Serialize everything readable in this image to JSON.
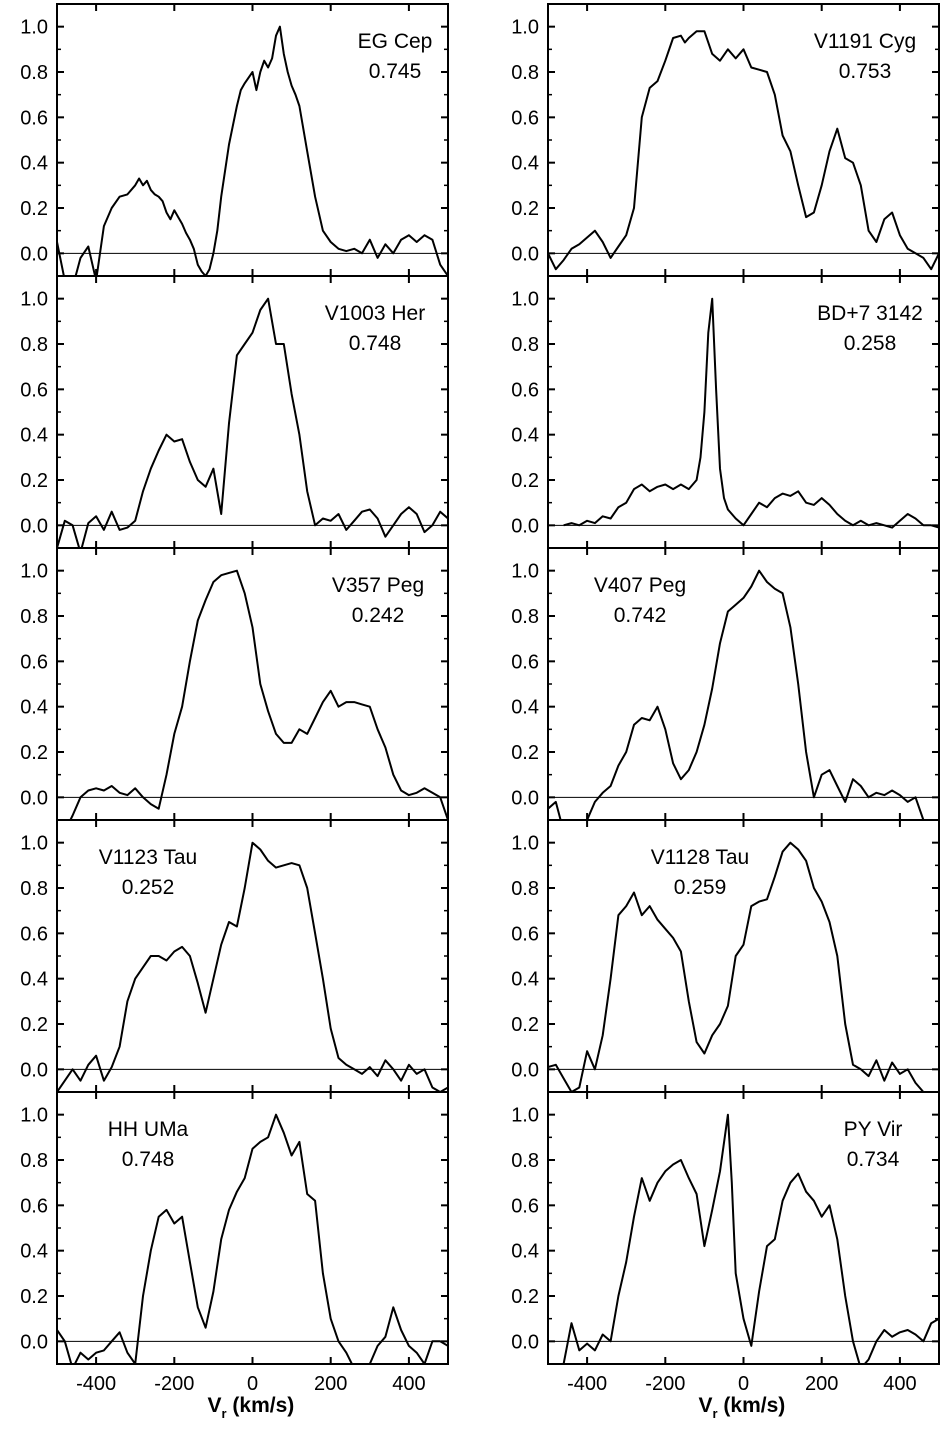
{
  "chart_data": {
    "type": "line",
    "layout": "grid",
    "columns": 2,
    "rows": 5,
    "xlim": [
      -500,
      500
    ],
    "ylim": [
      -0.1,
      1.1
    ],
    "x_ticks": [
      -400,
      -200,
      0,
      200,
      400
    ],
    "x_tick_labels": [
      "-400",
      "-200",
      "0",
      "200",
      "400"
    ],
    "y_ticks": [
      0.0,
      0.2,
      0.4,
      0.6,
      0.8,
      1.0
    ],
    "y_tick_labels": [
      "0.0",
      "0.2",
      "0.4",
      "0.6",
      "0.8",
      "1.0"
    ],
    "xlabel": {
      "main": "V",
      "sub": "r",
      "unit": " (km/s)"
    },
    "ylabel": "",
    "zero_line": true,
    "panels": [
      {
        "star": "EG Cep",
        "phase": "0.745",
        "x": [
          -500,
          -480,
          -460,
          -440,
          -420,
          -400,
          -380,
          -360,
          -340,
          -320,
          -300,
          -290,
          -280,
          -270,
          -260,
          -250,
          -240,
          -230,
          -220,
          -210,
          -200,
          -190,
          -180,
          -170,
          -160,
          -150,
          -140,
          -130,
          -120,
          -110,
          -100,
          -90,
          -80,
          -60,
          -40,
          -30,
          -20,
          0,
          10,
          20,
          30,
          40,
          50,
          60,
          70,
          80,
          90,
          100,
          110,
          120,
          140,
          160,
          180,
          200,
          220,
          240,
          260,
          280,
          300,
          320,
          340,
          360,
          380,
          400,
          420,
          440,
          460,
          480,
          500
        ],
        "y": [
          0.05,
          -0.12,
          -0.15,
          -0.02,
          0.03,
          -0.12,
          0.12,
          0.2,
          0.25,
          0.26,
          0.3,
          0.33,
          0.3,
          0.32,
          0.28,
          0.26,
          0.25,
          0.23,
          0.18,
          0.15,
          0.19,
          0.16,
          0.13,
          0.09,
          0.06,
          0.02,
          -0.05,
          -0.08,
          -0.1,
          -0.07,
          0.0,
          0.1,
          0.25,
          0.48,
          0.65,
          0.72,
          0.75,
          0.8,
          0.72,
          0.8,
          0.85,
          0.82,
          0.86,
          0.96,
          1.0,
          0.88,
          0.8,
          0.74,
          0.7,
          0.65,
          0.45,
          0.25,
          0.1,
          0.05,
          0.02,
          0.01,
          0.02,
          0.0,
          0.06,
          -0.02,
          0.04,
          0.0,
          0.06,
          0.08,
          0.05,
          0.08,
          0.06,
          -0.05,
          -0.1
        ]
      },
      {
        "star": "V1191 Cyg",
        "phase": "0.753",
        "x": [
          -500,
          -480,
          -460,
          -440,
          -420,
          -400,
          -380,
          -360,
          -340,
          -320,
          -300,
          -280,
          -260,
          -240,
          -220,
          -200,
          -180,
          -160,
          -150,
          -140,
          -120,
          -100,
          -80,
          -60,
          -40,
          -20,
          0,
          20,
          40,
          60,
          80,
          100,
          120,
          140,
          160,
          180,
          200,
          220,
          240,
          260,
          280,
          300,
          320,
          340,
          360,
          380,
          400,
          420,
          440,
          460,
          480,
          500
        ],
        "y": [
          0.0,
          -0.07,
          -0.03,
          0.02,
          0.04,
          0.07,
          0.1,
          0.05,
          -0.02,
          0.03,
          0.08,
          0.2,
          0.6,
          0.73,
          0.76,
          0.85,
          0.95,
          0.96,
          0.93,
          0.95,
          0.98,
          0.98,
          0.88,
          0.85,
          0.9,
          0.86,
          0.9,
          0.82,
          0.81,
          0.8,
          0.7,
          0.52,
          0.45,
          0.3,
          0.16,
          0.18,
          0.3,
          0.45,
          0.55,
          0.42,
          0.4,
          0.3,
          0.1,
          0.05,
          0.15,
          0.18,
          0.08,
          0.02,
          0.0,
          -0.02,
          -0.07,
          0.0
        ]
      },
      {
        "star": "V1003 Her",
        "phase": "0.748",
        "x": [
          -500,
          -480,
          -460,
          -440,
          -420,
          -400,
          -380,
          -360,
          -340,
          -320,
          -300,
          -280,
          -260,
          -240,
          -220,
          -200,
          -180,
          -160,
          -140,
          -120,
          -100,
          -80,
          -60,
          -40,
          -20,
          0,
          20,
          40,
          60,
          80,
          100,
          120,
          140,
          160,
          180,
          200,
          220,
          240,
          260,
          280,
          300,
          320,
          340,
          360,
          380,
          400,
          420,
          440,
          460,
          480,
          500
        ],
        "y": [
          -0.1,
          0.02,
          0.0,
          -0.12,
          0.01,
          0.04,
          -0.02,
          0.06,
          -0.02,
          -0.01,
          0.02,
          0.15,
          0.25,
          0.33,
          0.4,
          0.37,
          0.38,
          0.28,
          0.2,
          0.17,
          0.25,
          0.05,
          0.45,
          0.75,
          0.8,
          0.85,
          0.95,
          1.0,
          0.8,
          0.8,
          0.58,
          0.4,
          0.15,
          0.0,
          0.03,
          0.02,
          0.05,
          -0.02,
          0.02,
          0.06,
          0.07,
          0.03,
          -0.05,
          0.0,
          0.05,
          0.08,
          0.05,
          -0.03,
          0.0,
          0.06,
          0.03
        ]
      },
      {
        "star": "BD+7 3142",
        "phase": "0.258",
        "x": [
          -460,
          -440,
          -420,
          -400,
          -380,
          -360,
          -340,
          -320,
          -300,
          -280,
          -260,
          -240,
          -220,
          -200,
          -180,
          -160,
          -140,
          -120,
          -110,
          -100,
          -90,
          -80,
          -70,
          -60,
          -50,
          -40,
          -20,
          0,
          20,
          40,
          60,
          80,
          100,
          120,
          140,
          160,
          180,
          200,
          220,
          240,
          260,
          280,
          300,
          320,
          340,
          360,
          380,
          400,
          420,
          440,
          460,
          480,
          500
        ],
        "y": [
          0.0,
          0.01,
          0.0,
          0.02,
          0.01,
          0.04,
          0.03,
          0.08,
          0.1,
          0.16,
          0.18,
          0.15,
          0.17,
          0.18,
          0.16,
          0.18,
          0.16,
          0.2,
          0.3,
          0.5,
          0.85,
          1.0,
          0.6,
          0.25,
          0.12,
          0.07,
          0.03,
          0.0,
          0.05,
          0.1,
          0.08,
          0.12,
          0.14,
          0.13,
          0.15,
          0.1,
          0.09,
          0.12,
          0.09,
          0.05,
          0.02,
          0.0,
          0.02,
          0.0,
          0.01,
          0.0,
          -0.01,
          0.02,
          0.05,
          0.03,
          0.0,
          0.0,
          -0.01
        ]
      },
      {
        "star": "V357 Peg",
        "phase": "0.242",
        "x": [
          -500,
          -480,
          -460,
          -440,
          -420,
          -400,
          -380,
          -360,
          -340,
          -320,
          -300,
          -280,
          -260,
          -240,
          -220,
          -200,
          -180,
          -160,
          -140,
          -120,
          -100,
          -80,
          -60,
          -40,
          -20,
          0,
          20,
          40,
          60,
          80,
          100,
          120,
          140,
          160,
          180,
          200,
          220,
          240,
          260,
          280,
          300,
          320,
          340,
          360,
          380,
          400,
          420,
          440,
          460,
          480,
          500
        ],
        "y": [
          -0.12,
          -0.15,
          -0.08,
          0.0,
          0.03,
          0.04,
          0.03,
          0.05,
          0.02,
          0.01,
          0.04,
          0.0,
          -0.03,
          -0.05,
          0.1,
          0.28,
          0.4,
          0.6,
          0.78,
          0.87,
          0.95,
          0.98,
          0.99,
          1.0,
          0.9,
          0.75,
          0.5,
          0.38,
          0.28,
          0.24,
          0.24,
          0.3,
          0.28,
          0.35,
          0.42,
          0.47,
          0.4,
          0.42,
          0.42,
          0.41,
          0.4,
          0.3,
          0.22,
          0.1,
          0.03,
          0.01,
          0.02,
          0.04,
          0.02,
          0.0,
          -0.1
        ]
      },
      {
        "star": "V407 Peg",
        "phase": "0.742",
        "x": [
          -500,
          -480,
          -460,
          -440,
          -420,
          -400,
          -380,
          -360,
          -340,
          -320,
          -300,
          -280,
          -260,
          -240,
          -220,
          -200,
          -180,
          -160,
          -140,
          -120,
          -100,
          -80,
          -60,
          -40,
          -20,
          0,
          20,
          40,
          60,
          80,
          100,
          120,
          140,
          160,
          180,
          200,
          220,
          240,
          260,
          280,
          300,
          320,
          340,
          360,
          380,
          400,
          420,
          440,
          460,
          480,
          500
        ],
        "y": [
          -0.05,
          -0.02,
          -0.15,
          -0.12,
          -0.15,
          -0.1,
          -0.02,
          0.02,
          0.05,
          0.14,
          0.2,
          0.32,
          0.35,
          0.34,
          0.4,
          0.3,
          0.15,
          0.08,
          0.12,
          0.2,
          0.32,
          0.48,
          0.68,
          0.82,
          0.85,
          0.88,
          0.93,
          1.0,
          0.95,
          0.92,
          0.9,
          0.75,
          0.5,
          0.2,
          0.0,
          0.1,
          0.12,
          0.05,
          -0.02,
          0.08,
          0.05,
          0.0,
          0.02,
          0.01,
          0.03,
          0.01,
          -0.02,
          0.0,
          -0.1,
          -0.12,
          -0.1
        ]
      },
      {
        "star": "V1123 Tau",
        "phase": "0.252",
        "x": [
          -500,
          -480,
          -460,
          -440,
          -420,
          -400,
          -380,
          -360,
          -340,
          -320,
          -300,
          -280,
          -260,
          -240,
          -220,
          -200,
          -180,
          -160,
          -140,
          -120,
          -100,
          -80,
          -60,
          -40,
          -20,
          0,
          20,
          40,
          60,
          80,
          100,
          120,
          140,
          160,
          180,
          200,
          220,
          240,
          260,
          280,
          300,
          320,
          340,
          360,
          380,
          400,
          420,
          440,
          460,
          480,
          500
        ],
        "y": [
          -0.1,
          -0.05,
          0.0,
          -0.05,
          0.02,
          0.06,
          -0.05,
          0.01,
          0.1,
          0.3,
          0.4,
          0.45,
          0.5,
          0.5,
          0.48,
          0.52,
          0.54,
          0.5,
          0.38,
          0.25,
          0.4,
          0.55,
          0.65,
          0.63,
          0.8,
          1.0,
          0.97,
          0.92,
          0.89,
          0.9,
          0.91,
          0.9,
          0.8,
          0.6,
          0.4,
          0.18,
          0.05,
          0.02,
          0.0,
          -0.02,
          0.01,
          -0.03,
          0.04,
          0.0,
          -0.05,
          0.02,
          -0.02,
          0.0,
          -0.08,
          -0.1,
          -0.08
        ]
      },
      {
        "star": "V1128 Tau",
        "phase": "0.259",
        "x": [
          -500,
          -480,
          -460,
          -440,
          -420,
          -400,
          -380,
          -360,
          -340,
          -320,
          -300,
          -280,
          -260,
          -240,
          -220,
          -200,
          -180,
          -160,
          -140,
          -120,
          -100,
          -80,
          -60,
          -40,
          -20,
          0,
          20,
          40,
          60,
          80,
          100,
          120,
          140,
          160,
          180,
          200,
          220,
          240,
          260,
          280,
          300,
          320,
          340,
          360,
          380,
          400,
          420,
          440,
          460,
          480,
          500
        ],
        "y": [
          0.01,
          0.02,
          -0.04,
          -0.1,
          -0.08,
          0.08,
          0.0,
          0.15,
          0.4,
          0.68,
          0.72,
          0.78,
          0.68,
          0.72,
          0.66,
          0.62,
          0.58,
          0.52,
          0.3,
          0.12,
          0.07,
          0.15,
          0.2,
          0.28,
          0.5,
          0.55,
          0.72,
          0.74,
          0.75,
          0.85,
          0.96,
          1.0,
          0.97,
          0.92,
          0.8,
          0.74,
          0.65,
          0.5,
          0.2,
          0.02,
          0.0,
          -0.03,
          0.04,
          -0.05,
          0.03,
          -0.02,
          0.0,
          -0.06,
          -0.1,
          -0.12,
          -0.1
        ]
      },
      {
        "star": "HH UMa",
        "phase": "0.748",
        "x": [
          -500,
          -480,
          -460,
          -440,
          -420,
          -400,
          -380,
          -360,
          -340,
          -320,
          -300,
          -280,
          -260,
          -240,
          -220,
          -200,
          -180,
          -160,
          -140,
          -120,
          -100,
          -80,
          -60,
          -40,
          -20,
          0,
          20,
          40,
          60,
          80,
          100,
          120,
          140,
          160,
          180,
          200,
          220,
          240,
          260,
          280,
          300,
          320,
          340,
          360,
          380,
          400,
          420,
          440,
          460,
          480,
          500
        ],
        "y": [
          0.05,
          0.0,
          -0.12,
          -0.05,
          -0.08,
          -0.05,
          -0.04,
          0.0,
          0.04,
          -0.05,
          -0.1,
          0.2,
          0.4,
          0.55,
          0.58,
          0.52,
          0.55,
          0.35,
          0.15,
          0.06,
          0.22,
          0.45,
          0.58,
          0.66,
          0.72,
          0.85,
          0.88,
          0.9,
          1.0,
          0.92,
          0.82,
          0.88,
          0.65,
          0.62,
          0.3,
          0.1,
          0.0,
          -0.05,
          -0.12,
          -0.15,
          -0.1,
          -0.02,
          0.02,
          0.15,
          0.05,
          -0.02,
          -0.05,
          -0.1,
          0.0,
          0.0,
          -0.02
        ]
      },
      {
        "star": "PY Vir",
        "phase": "0.734",
        "x": [
          -500,
          -480,
          -460,
          -440,
          -420,
          -400,
          -380,
          -360,
          -340,
          -320,
          -300,
          -280,
          -260,
          -240,
          -220,
          -200,
          -180,
          -160,
          -140,
          -120,
          -100,
          -80,
          -60,
          -40,
          -30,
          -20,
          0,
          20,
          40,
          60,
          80,
          100,
          120,
          140,
          160,
          180,
          200,
          220,
          240,
          260,
          280,
          300,
          320,
          340,
          360,
          380,
          400,
          420,
          440,
          460,
          480,
          500
        ],
        "y": [
          -0.15,
          -0.15,
          -0.1,
          0.08,
          -0.04,
          -0.01,
          -0.04,
          0.03,
          0.0,
          0.2,
          0.35,
          0.55,
          0.72,
          0.62,
          0.7,
          0.75,
          0.78,
          0.8,
          0.72,
          0.65,
          0.42,
          0.58,
          0.75,
          1.0,
          0.7,
          0.3,
          0.1,
          -0.02,
          0.22,
          0.42,
          0.45,
          0.62,
          0.7,
          0.74,
          0.66,
          0.62,
          0.55,
          0.6,
          0.45,
          0.2,
          0.0,
          -0.12,
          -0.08,
          0.0,
          0.05,
          0.02,
          0.04,
          0.05,
          0.03,
          0.0,
          0.08,
          0.1
        ]
      }
    ]
  }
}
